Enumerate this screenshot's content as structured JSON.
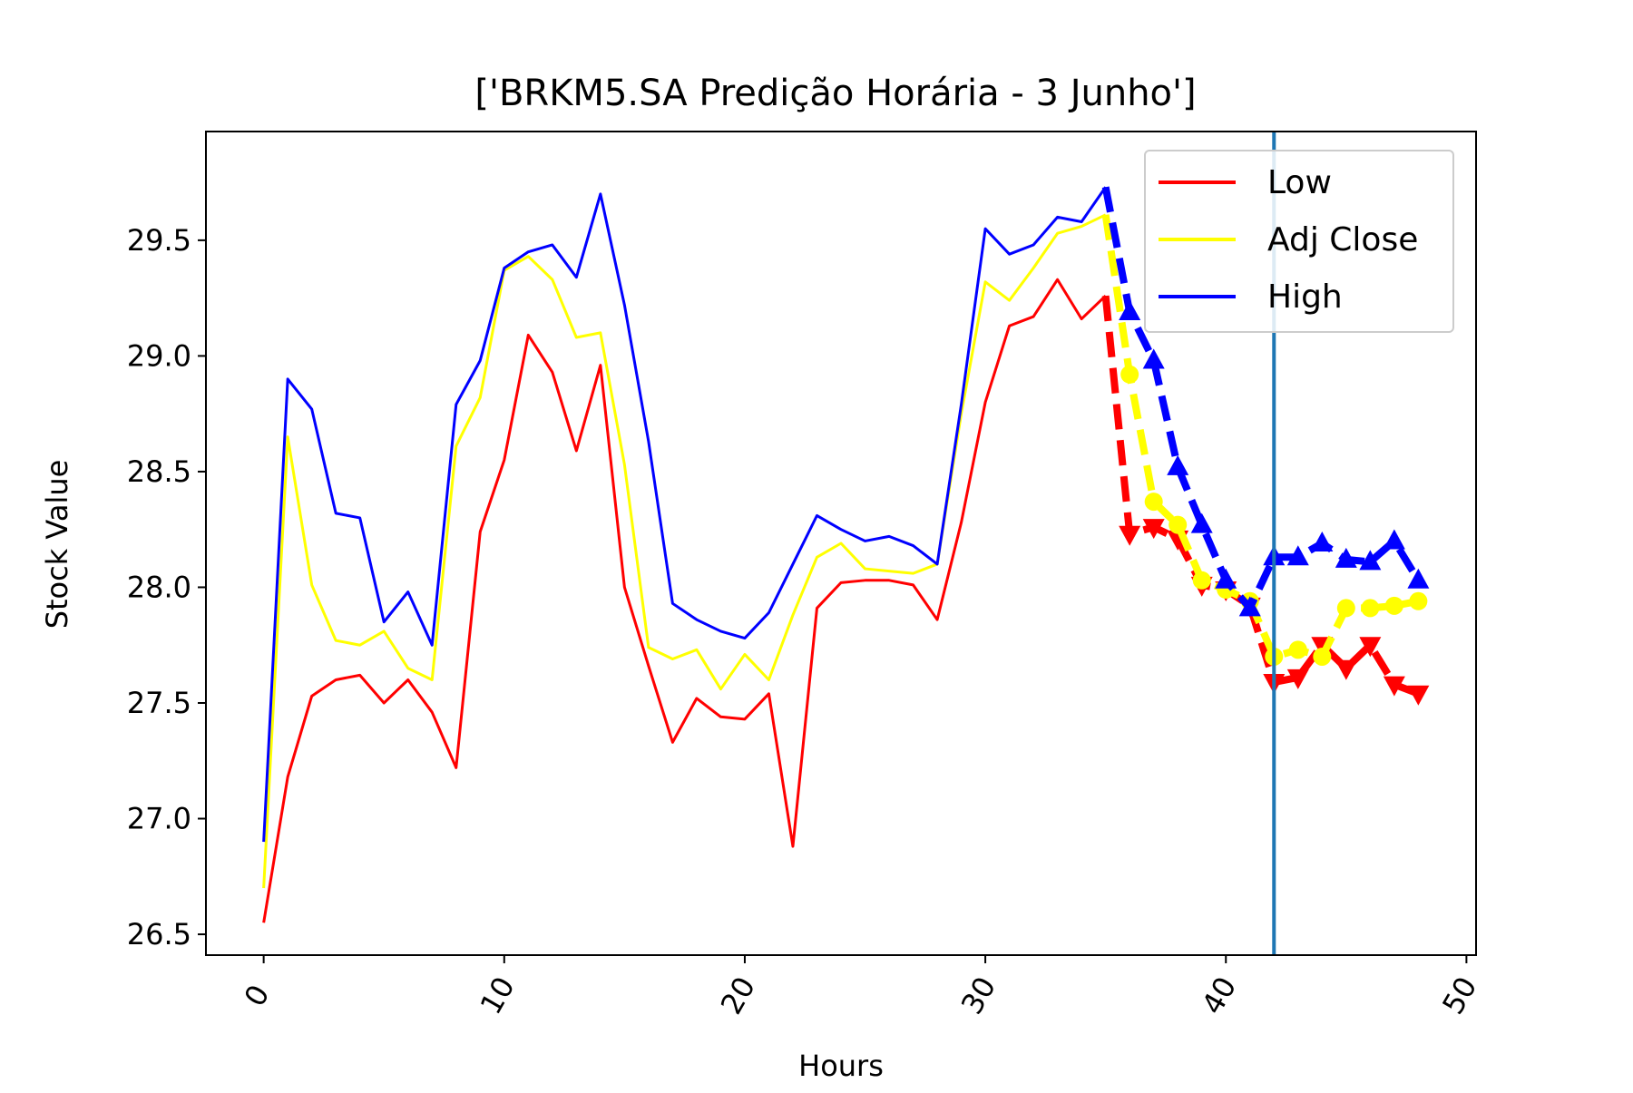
{
  "chart_data": {
    "type": "line",
    "title": "['BRKM5.SA Predição Horária - 3 Junho']",
    "xlabel": "Hours",
    "ylabel": "Stock Value",
    "xlim": [
      -2.4,
      50.4
    ],
    "ylim": [
      26.41,
      29.97
    ],
    "xticks": [
      0,
      10,
      20,
      30,
      40,
      50
    ],
    "xtick_labels": [
      "0",
      "10",
      "20",
      "30",
      "40",
      "50"
    ],
    "yticks": [
      26.5,
      27.0,
      27.5,
      28.0,
      28.5,
      29.0,
      29.5
    ],
    "ytick_labels": [
      "26.5",
      "27.0",
      "27.5",
      "28.0",
      "28.5",
      "29.0",
      "29.5"
    ],
    "grid": false,
    "legend_position": "upper right",
    "vline_x": 42,
    "vline_color": "#1f77b4",
    "series": [
      {
        "name": "Low",
        "color": "#ff0000",
        "marker": "triangle-down",
        "x": [
          0,
          1,
          2,
          3,
          4,
          5,
          6,
          7,
          8,
          9,
          10,
          11,
          12,
          13,
          14,
          15,
          16,
          17,
          18,
          19,
          20,
          21,
          22,
          23,
          24,
          25,
          26,
          27,
          28,
          29,
          30,
          31,
          32,
          33,
          34,
          35
        ],
        "values": [
          26.55,
          27.18,
          27.53,
          27.6,
          27.62,
          27.5,
          27.6,
          27.46,
          27.22,
          28.24,
          28.55,
          29.09,
          28.93,
          28.59,
          28.96,
          28.0,
          27.66,
          27.33,
          27.52,
          27.44,
          27.43,
          27.54,
          26.88,
          27.91,
          28.02,
          28.03,
          28.03,
          28.01,
          27.86,
          28.28,
          28.8,
          29.13,
          29.17,
          29.33,
          29.16,
          29.26
        ],
        "predicted_x": [
          35,
          36,
          37,
          38,
          39,
          40,
          41,
          42,
          43,
          44,
          45,
          46,
          47,
          48
        ],
        "predicted": [
          29.26,
          28.23,
          28.26,
          28.21,
          28.01,
          27.99,
          27.92,
          27.59,
          27.61,
          27.75,
          27.65,
          27.75,
          27.58,
          27.54
        ]
      },
      {
        "name": "Adj Close",
        "color": "#ffff00",
        "marker": "circle",
        "x": [
          0,
          1,
          2,
          3,
          4,
          5,
          6,
          7,
          8,
          9,
          10,
          11,
          12,
          13,
          14,
          15,
          16,
          17,
          18,
          19,
          20,
          21,
          22,
          23,
          24,
          25,
          26,
          27,
          28,
          29,
          30,
          31,
          32,
          33,
          34,
          35
        ],
        "values": [
          26.7,
          28.65,
          28.01,
          27.77,
          27.75,
          27.81,
          27.65,
          27.6,
          28.61,
          28.82,
          29.37,
          29.43,
          29.33,
          29.08,
          29.1,
          28.53,
          27.74,
          27.69,
          27.73,
          27.56,
          27.71,
          27.6,
          27.88,
          28.13,
          28.19,
          28.08,
          28.07,
          28.06,
          28.1,
          28.75,
          29.32,
          29.24,
          29.38,
          29.53,
          29.56,
          29.61
        ],
        "predicted_x": [
          35,
          36,
          37,
          38,
          39,
          40,
          41,
          42,
          43,
          44,
          45,
          46,
          47,
          48
        ],
        "predicted": [
          29.61,
          28.92,
          28.37,
          28.27,
          28.03,
          27.99,
          27.94,
          27.7,
          27.73,
          27.7,
          27.91,
          27.91,
          27.92,
          27.94
        ]
      },
      {
        "name": "High",
        "color": "#0000ff",
        "marker": "triangle-up",
        "x": [
          0,
          1,
          2,
          3,
          4,
          5,
          6,
          7,
          8,
          9,
          10,
          11,
          12,
          13,
          14,
          15,
          16,
          17,
          18,
          19,
          20,
          21,
          22,
          23,
          24,
          25,
          26,
          27,
          28,
          29,
          30,
          31,
          32,
          33,
          34,
          35
        ],
        "values": [
          26.9,
          28.9,
          28.77,
          28.32,
          28.3,
          27.85,
          27.98,
          27.75,
          28.79,
          28.98,
          29.38,
          29.45,
          29.48,
          29.34,
          29.7,
          29.22,
          28.63,
          27.93,
          27.86,
          27.81,
          27.78,
          27.89,
          28.1,
          28.31,
          28.25,
          28.2,
          28.22,
          28.18,
          28.1,
          28.79,
          29.55,
          29.44,
          29.48,
          29.6,
          29.58,
          29.73
        ],
        "predicted_x": [
          35,
          36,
          37,
          38,
          39,
          40,
          41,
          42,
          43,
          44,
          45,
          46,
          47,
          48
        ],
        "predicted": [
          29.73,
          29.19,
          28.98,
          28.52,
          28.27,
          28.03,
          27.91,
          28.13,
          28.13,
          28.19,
          28.12,
          28.11,
          28.2,
          28.03
        ]
      }
    ]
  }
}
